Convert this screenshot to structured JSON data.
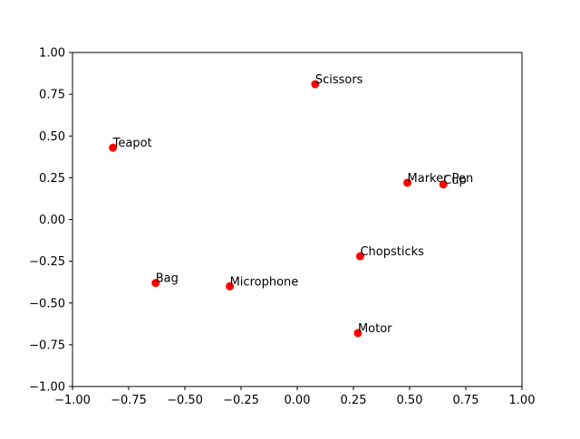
{
  "chart_data": {
    "type": "scatter",
    "title": "",
    "xlabel": "",
    "ylabel": "",
    "xlim": [
      -1.0,
      1.0
    ],
    "ylim": [
      -1.0,
      1.0
    ],
    "grid": false,
    "marker_color": "#ff0000",
    "x_ticks": [
      "−1.00",
      "−0.75",
      "−0.50",
      "−0.25",
      "0.00",
      "0.25",
      "0.50",
      "0.75",
      "1.00"
    ],
    "y_ticks": [
      "−1.00",
      "−0.75",
      "−0.50",
      "−0.25",
      "0.00",
      "0.25",
      "0.50",
      "0.75",
      "1.00"
    ],
    "x_tick_values": [
      -1.0,
      -0.75,
      -0.5,
      -0.25,
      0.0,
      0.25,
      0.5,
      0.75,
      1.0
    ],
    "y_tick_values": [
      -1.0,
      -0.75,
      -0.5,
      -0.25,
      0.0,
      0.25,
      0.5,
      0.75,
      1.0
    ],
    "points": [
      {
        "label": "Scissors",
        "x": 0.08,
        "y": 0.81
      },
      {
        "label": "Teapot",
        "x": -0.82,
        "y": 0.43
      },
      {
        "label": "Marker Pen",
        "x": 0.49,
        "y": 0.22
      },
      {
        "label": "Cup",
        "x": 0.65,
        "y": 0.21
      },
      {
        "label": "Chopsticks",
        "x": 0.28,
        "y": -0.22
      },
      {
        "label": "Bag",
        "x": -0.63,
        "y": -0.38
      },
      {
        "label": "Microphone",
        "x": -0.3,
        "y": -0.4
      },
      {
        "label": "Motor",
        "x": 0.27,
        "y": -0.68
      }
    ]
  }
}
